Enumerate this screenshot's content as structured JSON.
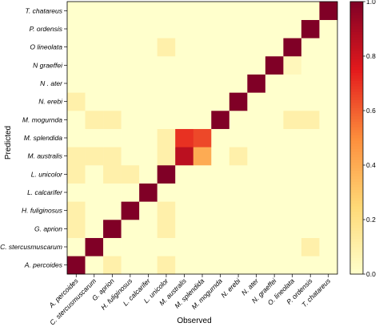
{
  "chart_data": {
    "type": "heatmap",
    "xlabel": "Observed",
    "ylabel": "Predicted",
    "categories": [
      "A. percoides",
      "C. stercusmuscarum",
      "G. aprion",
      "H. fuliginosus",
      "L. calcarifer",
      "L. unicolor",
      "M. australis",
      "M. splendida",
      "M. mogurnda",
      "N. erebi",
      "N. ater",
      "N. graeffei",
      "O. lineolata",
      "P. ordensis",
      "T. chatareus"
    ],
    "y_categories": [
      "A. percoides",
      "C. stercusmuscarum",
      "G. aprion",
      "H. fuliginosus",
      "L. calcarifer",
      "L. unicolor",
      "M. australis",
      "M. splendida",
      "M. mogurnda",
      "N. erebi",
      "N . ater",
      "N graeffei",
      "O lineolata",
      "P. ordensis",
      "T. chatareus"
    ],
    "values": [
      [
        1.0,
        0,
        0.1,
        0,
        0,
        0.1,
        0,
        0,
        0,
        0,
        0,
        0,
        0,
        0,
        0
      ],
      [
        0,
        1.0,
        0,
        0,
        0,
        0,
        0,
        0,
        0,
        0,
        0,
        0,
        0,
        0.1,
        0
      ],
      [
        0.1,
        0,
        1.0,
        0,
        0,
        0.1,
        0,
        0,
        0,
        0,
        0,
        0,
        0,
        0,
        0
      ],
      [
        0.1,
        0,
        0,
        1.0,
        0,
        0.1,
        0,
        0,
        0,
        0,
        0,
        0,
        0,
        0,
        0
      ],
      [
        0,
        0,
        0,
        0,
        1.0,
        0,
        0,
        0,
        0,
        0,
        0,
        0,
        0,
        0,
        0
      ],
      [
        0.1,
        0,
        0.1,
        0.1,
        0,
        1.0,
        0,
        0,
        0,
        0,
        0,
        0,
        0,
        0,
        0
      ],
      [
        0.1,
        0.1,
        0.1,
        0,
        0,
        0.1,
        0.85,
        0.4,
        0,
        0.1,
        0,
        0,
        0,
        0,
        0
      ],
      [
        0,
        0,
        0,
        0,
        0,
        0.1,
        0.7,
        0.65,
        0,
        0,
        0,
        0,
        0,
        0,
        0
      ],
      [
        0,
        0.1,
        0.1,
        0,
        0,
        0,
        0,
        0,
        1.0,
        0,
        0,
        0,
        0.1,
        0.1,
        0
      ],
      [
        0.1,
        0,
        0,
        0,
        0,
        0,
        0,
        0,
        0,
        1.0,
        0,
        0,
        0,
        0,
        0
      ],
      [
        0,
        0,
        0,
        0,
        0,
        0,
        0,
        0,
        0,
        0,
        1.0,
        0,
        0,
        0,
        0
      ],
      [
        0,
        0,
        0,
        0,
        0,
        0,
        0,
        0,
        0,
        0,
        0,
        1.0,
        0.05,
        0,
        0
      ],
      [
        0,
        0,
        0,
        0,
        0,
        0.1,
        0,
        0,
        0,
        0,
        0,
        0,
        1.0,
        0,
        0
      ],
      [
        0,
        0,
        0,
        0,
        0,
        0,
        0,
        0,
        0,
        0,
        0,
        0,
        0,
        1.0,
        0
      ],
      [
        0,
        0,
        0,
        0,
        0,
        0,
        0,
        0,
        0,
        0,
        0,
        0,
        0,
        0,
        1.0
      ]
    ],
    "value_range": [
      0,
      1
    ],
    "colorbar": {
      "ticks": [
        0.0,
        0.2,
        0.4,
        0.6,
        0.8,
        1.0
      ],
      "tick_labels": [
        "0.0",
        "0.2",
        "0.4",
        "0.6",
        "0.8",
        "1.0"
      ],
      "placement": "right",
      "color_stops": [
        "#ffffcc",
        "#fed976",
        "#fd8d3c",
        "#e31a1c",
        "#800026"
      ]
    },
    "grid": false
  }
}
